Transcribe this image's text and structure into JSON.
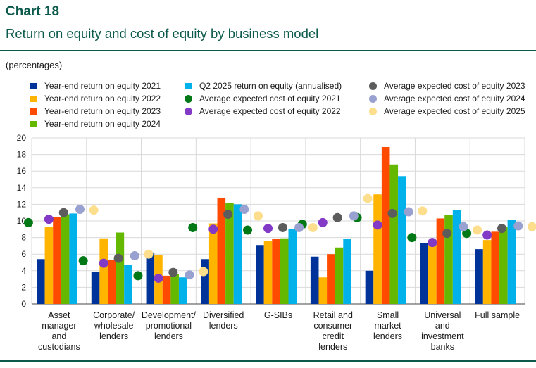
{
  "header": {
    "chart_label": "Chart 18",
    "title": "Return on equity and cost of equity by business model",
    "units": "(percentages)"
  },
  "chart_data": {
    "type": "bar",
    "categories": [
      [
        "Asset",
        "manager",
        "and",
        "custodians"
      ],
      [
        "Corporate/",
        "wholesale",
        "lenders"
      ],
      [
        "Development/",
        "promotional",
        "lenders"
      ],
      [
        "Diversified",
        "lenders"
      ],
      [
        "G-SIBs"
      ],
      [
        "Retail and",
        "consumer",
        "credit",
        "lenders"
      ],
      [
        "Small",
        "market",
        "lenders"
      ],
      [
        "Universal",
        "and",
        "investment",
        "banks"
      ],
      [
        "Full sample"
      ]
    ],
    "ylim": [
      0,
      20
    ],
    "yticks": [
      0,
      2,
      4,
      6,
      8,
      10,
      12,
      14,
      16,
      18,
      20
    ],
    "grid": true,
    "series": [
      {
        "name": "Year-end return on equity 2021",
        "kind": "bar",
        "color": "#003399",
        "values": [
          5.4,
          3.9,
          6.2,
          5.4,
          7.1,
          5.7,
          4.0,
          7.3,
          6.6
        ]
      },
      {
        "name": "Year-end return on equity 2022",
        "kind": "bar",
        "color": "#ffb400",
        "values": [
          9.3,
          7.9,
          5.9,
          9.7,
          7.6,
          3.2,
          13.2,
          7.2,
          7.7
        ]
      },
      {
        "name": "Year-end return on equity 2023",
        "kind": "bar",
        "color": "#ff4b00",
        "values": [
          10.5,
          5.3,
          3.4,
          12.8,
          7.8,
          6.0,
          18.9,
          10.3,
          8.7
        ]
      },
      {
        "name": "Year-end return on equity 2024",
        "kind": "bar",
        "color": "#65b800",
        "values": [
          10.8,
          8.6,
          3.6,
          12.2,
          7.9,
          6.8,
          16.8,
          10.7,
          9.3
        ]
      },
      {
        "name": "Q2 2025 return on equity (annualised)",
        "kind": "bar",
        "color": "#00b1ea",
        "values": [
          10.9,
          4.7,
          3.2,
          12.0,
          9.0,
          7.8,
          15.4,
          11.3,
          10.1
        ]
      },
      {
        "name": "Average expected cost of equity 2021",
        "kind": "dot",
        "color": "#007816",
        "values": [
          9.8,
          5.2,
          3.4,
          9.2,
          8.9,
          9.6,
          10.4,
          8.0,
          8.5
        ]
      },
      {
        "name": "Average expected cost of equity 2022",
        "kind": "dot",
        "color": "#8139c6",
        "values": [
          10.2,
          4.9,
          3.1,
          9.0,
          9.1,
          9.8,
          9.5,
          7.4,
          8.3
        ]
      },
      {
        "name": "Average expected cost of equity 2023",
        "kind": "dot",
        "color": "#5c5c5c",
        "values": [
          11.0,
          5.5,
          3.8,
          10.8,
          9.2,
          10.4,
          10.9,
          8.5,
          9.1
        ]
      },
      {
        "name": "Average expected cost of equity 2024",
        "kind": "dot",
        "color": "#98a1d0",
        "values": [
          11.4,
          5.8,
          3.5,
          11.4,
          9.2,
          10.6,
          11.1,
          9.3,
          9.4
        ]
      },
      {
        "name": "Average expected cost of equity 2025",
        "kind": "dot",
        "color": "#fdde8c",
        "values": [
          11.3,
          6.0,
          3.9,
          10.6,
          9.2,
          12.7,
          11.2,
          8.9,
          9.3
        ]
      }
    ]
  }
}
